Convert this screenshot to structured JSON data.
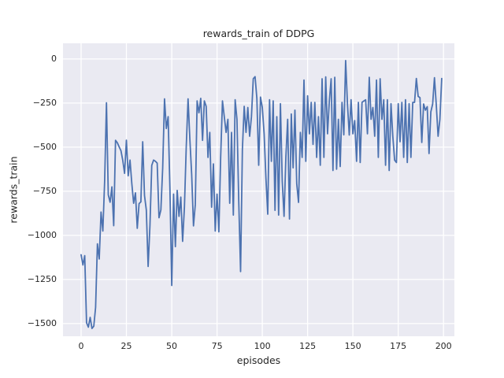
{
  "chart_data": {
    "type": "line",
    "title": "rewards_train of DDPG",
    "xlabel": "episodes",
    "ylabel": "rewards_train",
    "series_name": "rewards_train",
    "line_color": "#4c72b0",
    "plot_background_color": "#eaeaf2",
    "grid_color": "#ffffff",
    "text_color": "#262626",
    "grid": true,
    "legend": "none",
    "x_ticks": [
      0,
      25,
      50,
      75,
      100,
      125,
      150,
      175,
      200
    ],
    "x_tick_labels": [
      "0",
      "25",
      "50",
      "75",
      "100",
      "125",
      "150",
      "175",
      "200"
    ],
    "y_ticks": [
      0,
      -250,
      -500,
      -750,
      -1000,
      -1250,
      -1500
    ],
    "y_tick_labels": [
      "0",
      "−250",
      "−500",
      "−750",
      "−1000",
      "−1250",
      "−1500"
    ],
    "xlim": [
      -10,
      206
    ],
    "ylim": [
      -1572,
      89
    ],
    "x_start": 0,
    "x_step": 1,
    "values": [
      -1110,
      -1168,
      -1115,
      -1495,
      -1520,
      -1465,
      -1528,
      -1515,
      -1408,
      -1048,
      -1134,
      -868,
      -975,
      -690,
      -248,
      -770,
      -812,
      -725,
      -945,
      -461,
      -475,
      -498,
      -520,
      -575,
      -648,
      -460,
      -662,
      -573,
      -707,
      -818,
      -759,
      -960,
      -820,
      -810,
      -469,
      -774,
      -856,
      -1176,
      -945,
      -603,
      -573,
      -580,
      -590,
      -900,
      -856,
      -617,
      -226,
      -394,
      -327,
      -740,
      -1284,
      -766,
      -1064,
      -745,
      -892,
      -783,
      -1034,
      -840,
      -498,
      -226,
      -455,
      -655,
      -946,
      -825,
      -238,
      -305,
      -223,
      -461,
      -238,
      -268,
      -558,
      -416,
      -840,
      -595,
      -975,
      -766,
      -980,
      -558,
      -238,
      -327,
      -416,
      -342,
      -818,
      -416,
      -885,
      -231,
      -342,
      -811,
      -1205,
      -513,
      -268,
      -416,
      -275,
      -438,
      -327,
      -112,
      -100,
      -224,
      -602,
      -216,
      -275,
      -424,
      -677,
      -880,
      -231,
      -580,
      -238,
      -858,
      -327,
      -885,
      -253,
      -692,
      -892,
      -558,
      -342,
      -907,
      -312,
      -617,
      -290,
      -707,
      -813,
      -416,
      -558,
      -119,
      -580,
      -209,
      -424,
      -246,
      -484,
      -246,
      -558,
      -327,
      -602,
      -112,
      -558,
      -101,
      -424,
      -238,
      -112,
      -632,
      -104,
      -625,
      -342,
      -610,
      -246,
      -430,
      -9,
      -253,
      -431,
      -231,
      -424,
      -349,
      -580,
      -246,
      -587,
      -246,
      -238,
      -231,
      -424,
      -104,
      -342,
      -275,
      -438,
      -119,
      -558,
      -112,
      -342,
      -231,
      -602,
      -231,
      -632,
      -253,
      -438,
      -573,
      -587,
      -253,
      -469,
      -246,
      -558,
      -231,
      -587,
      -253,
      -558,
      -246,
      -246,
      -110,
      -212,
      -219,
      -473,
      -255,
      -290,
      -270,
      -536,
      -300,
      -255,
      -106,
      -260,
      -438,
      -342,
      -110
    ]
  }
}
